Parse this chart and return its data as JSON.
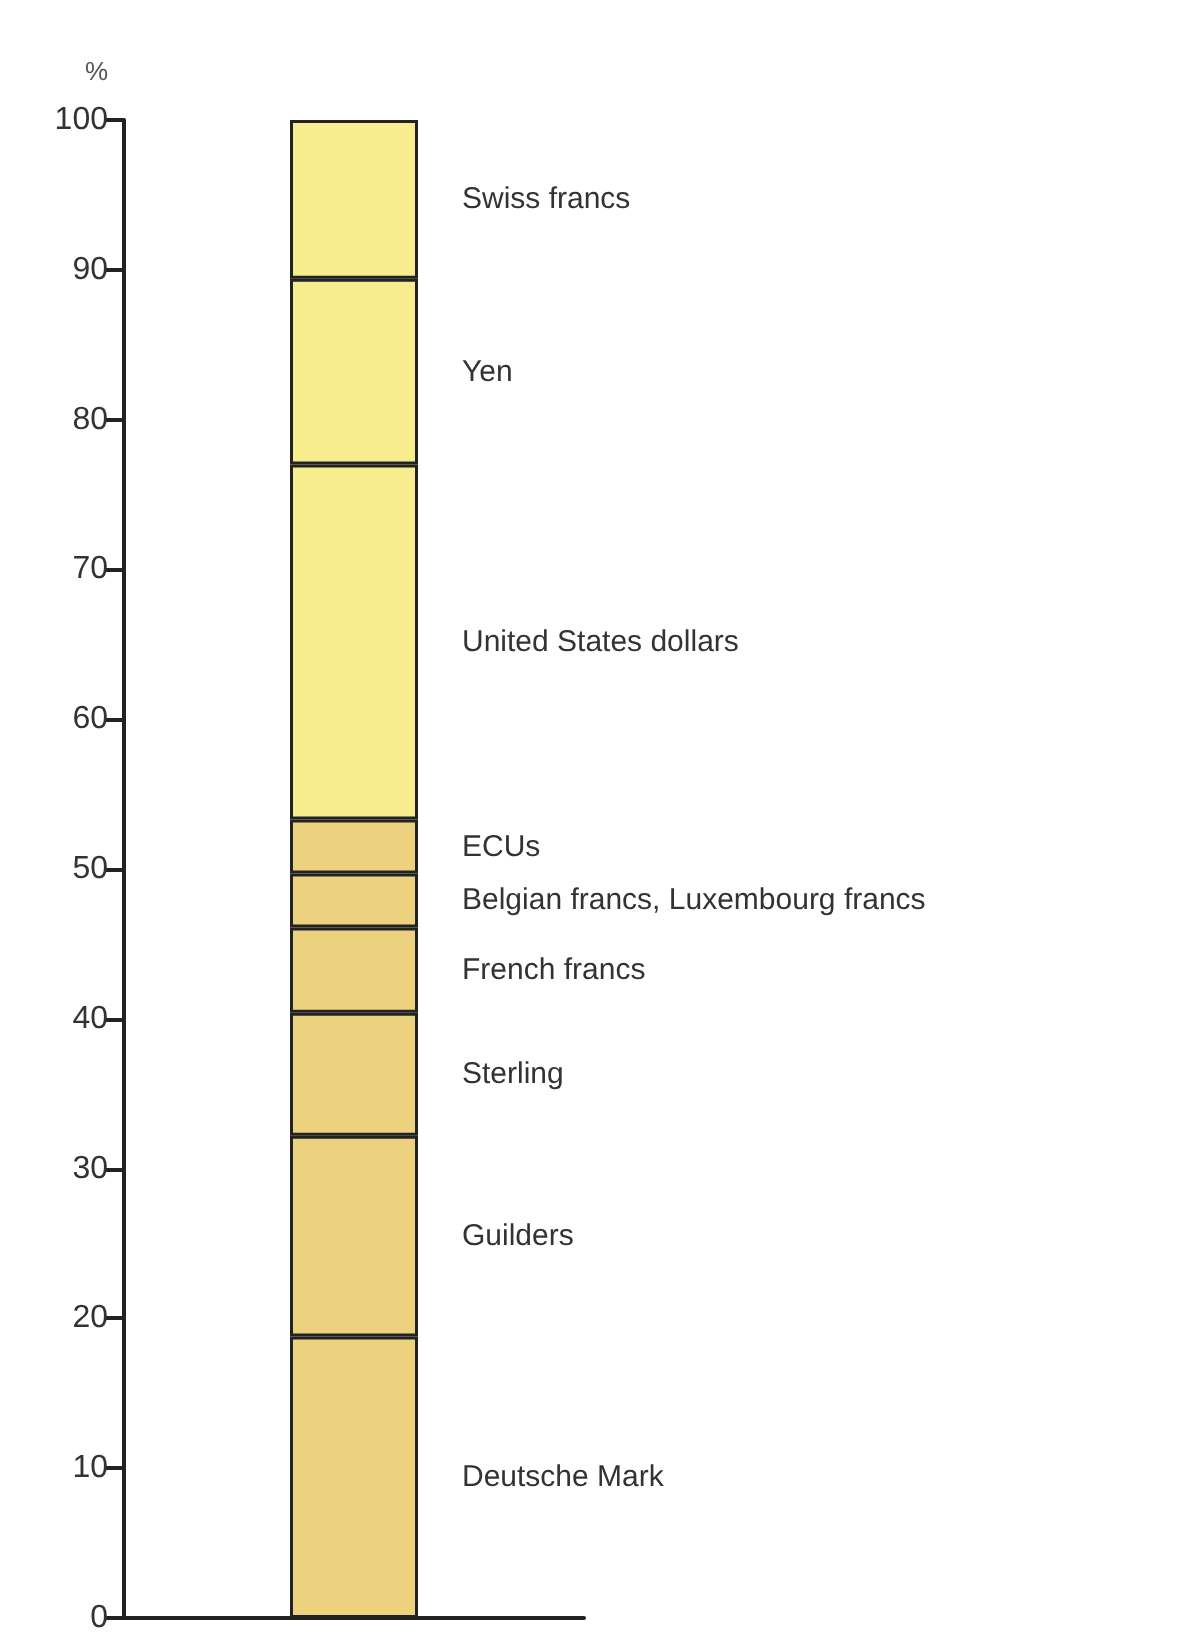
{
  "chart_data": {
    "type": "bar",
    "stacked": true,
    "ylabel": "%",
    "categories": [
      null
    ],
    "series": [
      {
        "name": "Deutsche Mark",
        "color": "#ecd27e",
        "values": [
          18.8
        ]
      },
      {
        "name": "Guilders",
        "color": "#ecd27e",
        "values": [
          13.4
        ]
      },
      {
        "name": "Sterling",
        "color": "#ecd27e",
        "values": [
          8.2
        ]
      },
      {
        "name": "French francs",
        "color": "#ecd27e",
        "values": [
          5.7
        ]
      },
      {
        "name": "Belgian francs, Luxembourg francs",
        "color": "#ecd27e",
        "values": [
          3.6
        ]
      },
      {
        "name": "ECUs",
        "color": "#ecd27e",
        "values": [
          3.6
        ]
      },
      {
        "name": "United States dollars",
        "color": "#f7ec8e",
        "values": [
          23.7
        ]
      },
      {
        "name": "Yen",
        "color": "#f7ec8e",
        "values": [
          12.4
        ]
      },
      {
        "name": "Swiss francs",
        "color": "#f7ec8e",
        "values": [
          10.6
        ]
      }
    ],
    "ylim": [
      0,
      100
    ],
    "yticks": [
      0,
      10,
      20,
      30,
      40,
      50,
      60,
      70,
      80,
      90,
      100
    ],
    "grid": false,
    "legend": false
  }
}
